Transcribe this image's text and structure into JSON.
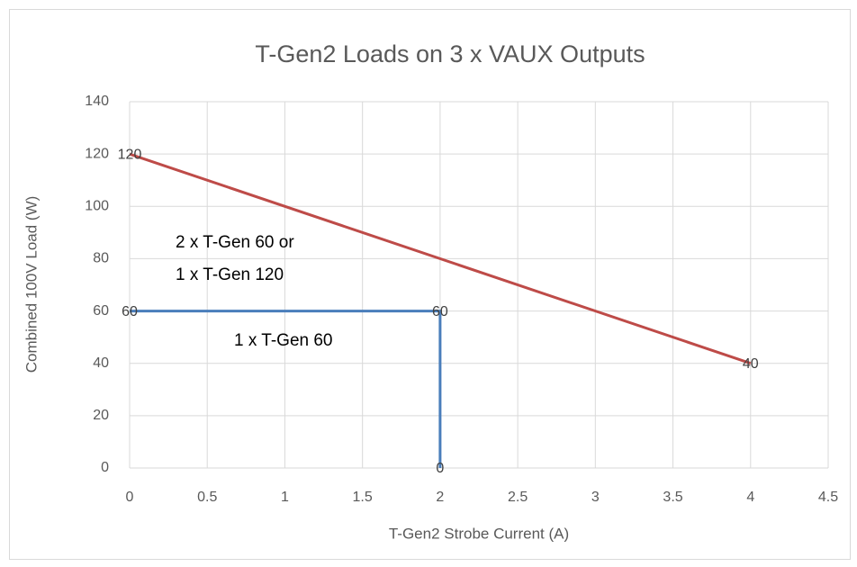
{
  "chart_data": {
    "type": "scatter",
    "title": "T-Gen2 Loads on 3 x VAUX Outputs",
    "x_label": "T-Gen2 Strobe Current (A)",
    "y_label": "Combined 100V Load (W)",
    "series": [
      {
        "color": "#be4b48",
        "x": [
          0,
          4
        ],
        "values": [
          120,
          40
        ]
      },
      {
        "color": "#4a7ebb",
        "x": [
          0,
          2,
          2
        ],
        "values": [
          60,
          60,
          0
        ]
      }
    ],
    "annotations": [
      "2 x T-Gen 60 or",
      "1 x T-Gen 120",
      "1 x T-Gen 60"
    ],
    "xlim": [
      0,
      4.5
    ],
    "xticks": [
      0,
      0.5,
      1,
      1.5,
      2,
      2.5,
      3,
      3.5,
      4,
      4.5
    ],
    "ylim": [
      0,
      140
    ],
    "yticks": [
      0,
      20,
      40,
      60,
      80,
      100,
      120,
      140
    ],
    "grid": true
  }
}
